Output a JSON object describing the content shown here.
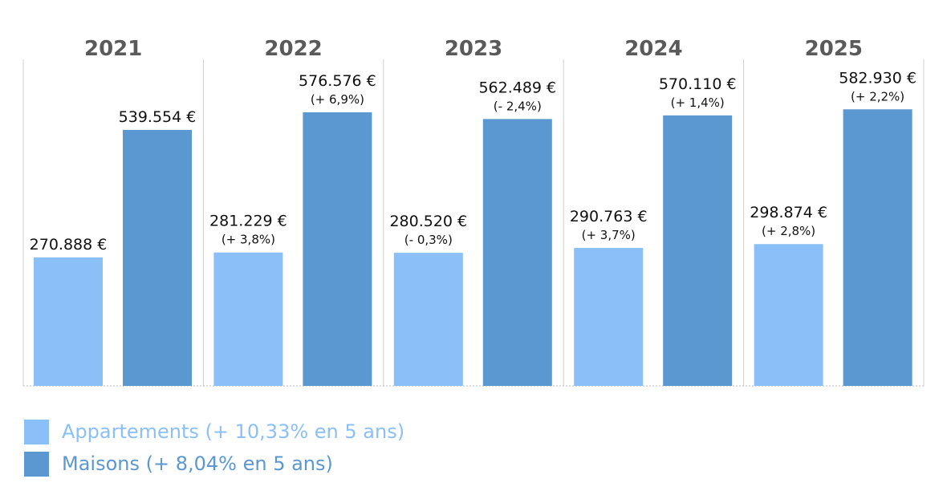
{
  "chart_data": {
    "type": "bar",
    "categories": [
      "2021",
      "2022",
      "2023",
      "2024",
      "2025"
    ],
    "series": [
      {
        "name": "Appartements (+ 10,33% en 5 ans)",
        "color": "#8ac0f7",
        "values": [
          270888,
          281229,
          280520,
          290763,
          298874
        ],
        "value_labels": [
          "270.888 €",
          "281.229 €",
          "280.520 €",
          "290.763 €",
          "298.874 €"
        ],
        "change_labels": [
          "",
          "(+ 3,8%)",
          "(- 0,3%)",
          "(+ 3,7%)",
          "(+ 2,8%)"
        ]
      },
      {
        "name": "Maisons (+ 8,04% en 5 ans)",
        "color": "#5b97d0",
        "values": [
          539554,
          576576,
          562489,
          570110,
          582930
        ],
        "value_labels": [
          "539.554 €",
          "576.576 €",
          "562.489 €",
          "570.110 €",
          "582.930 €"
        ],
        "change_labels": [
          "",
          "(+ 6,9%)",
          "(- 2,4%)",
          "(+ 1,4%)",
          "(+ 2,2%)"
        ]
      }
    ],
    "ylim": [
      0,
      725000
    ],
    "grid": false,
    "legend_position": "bottom-left"
  },
  "legend": [
    {
      "label": "Appartements (+ 10,33% en 5 ans)",
      "color": "#8ac0f7",
      "text_color": "#8ac0f7"
    },
    {
      "label": "Maisons (+ 8,04% en 5 ans)",
      "color": "#5b97d0",
      "text_color": "#5b97d0"
    }
  ]
}
